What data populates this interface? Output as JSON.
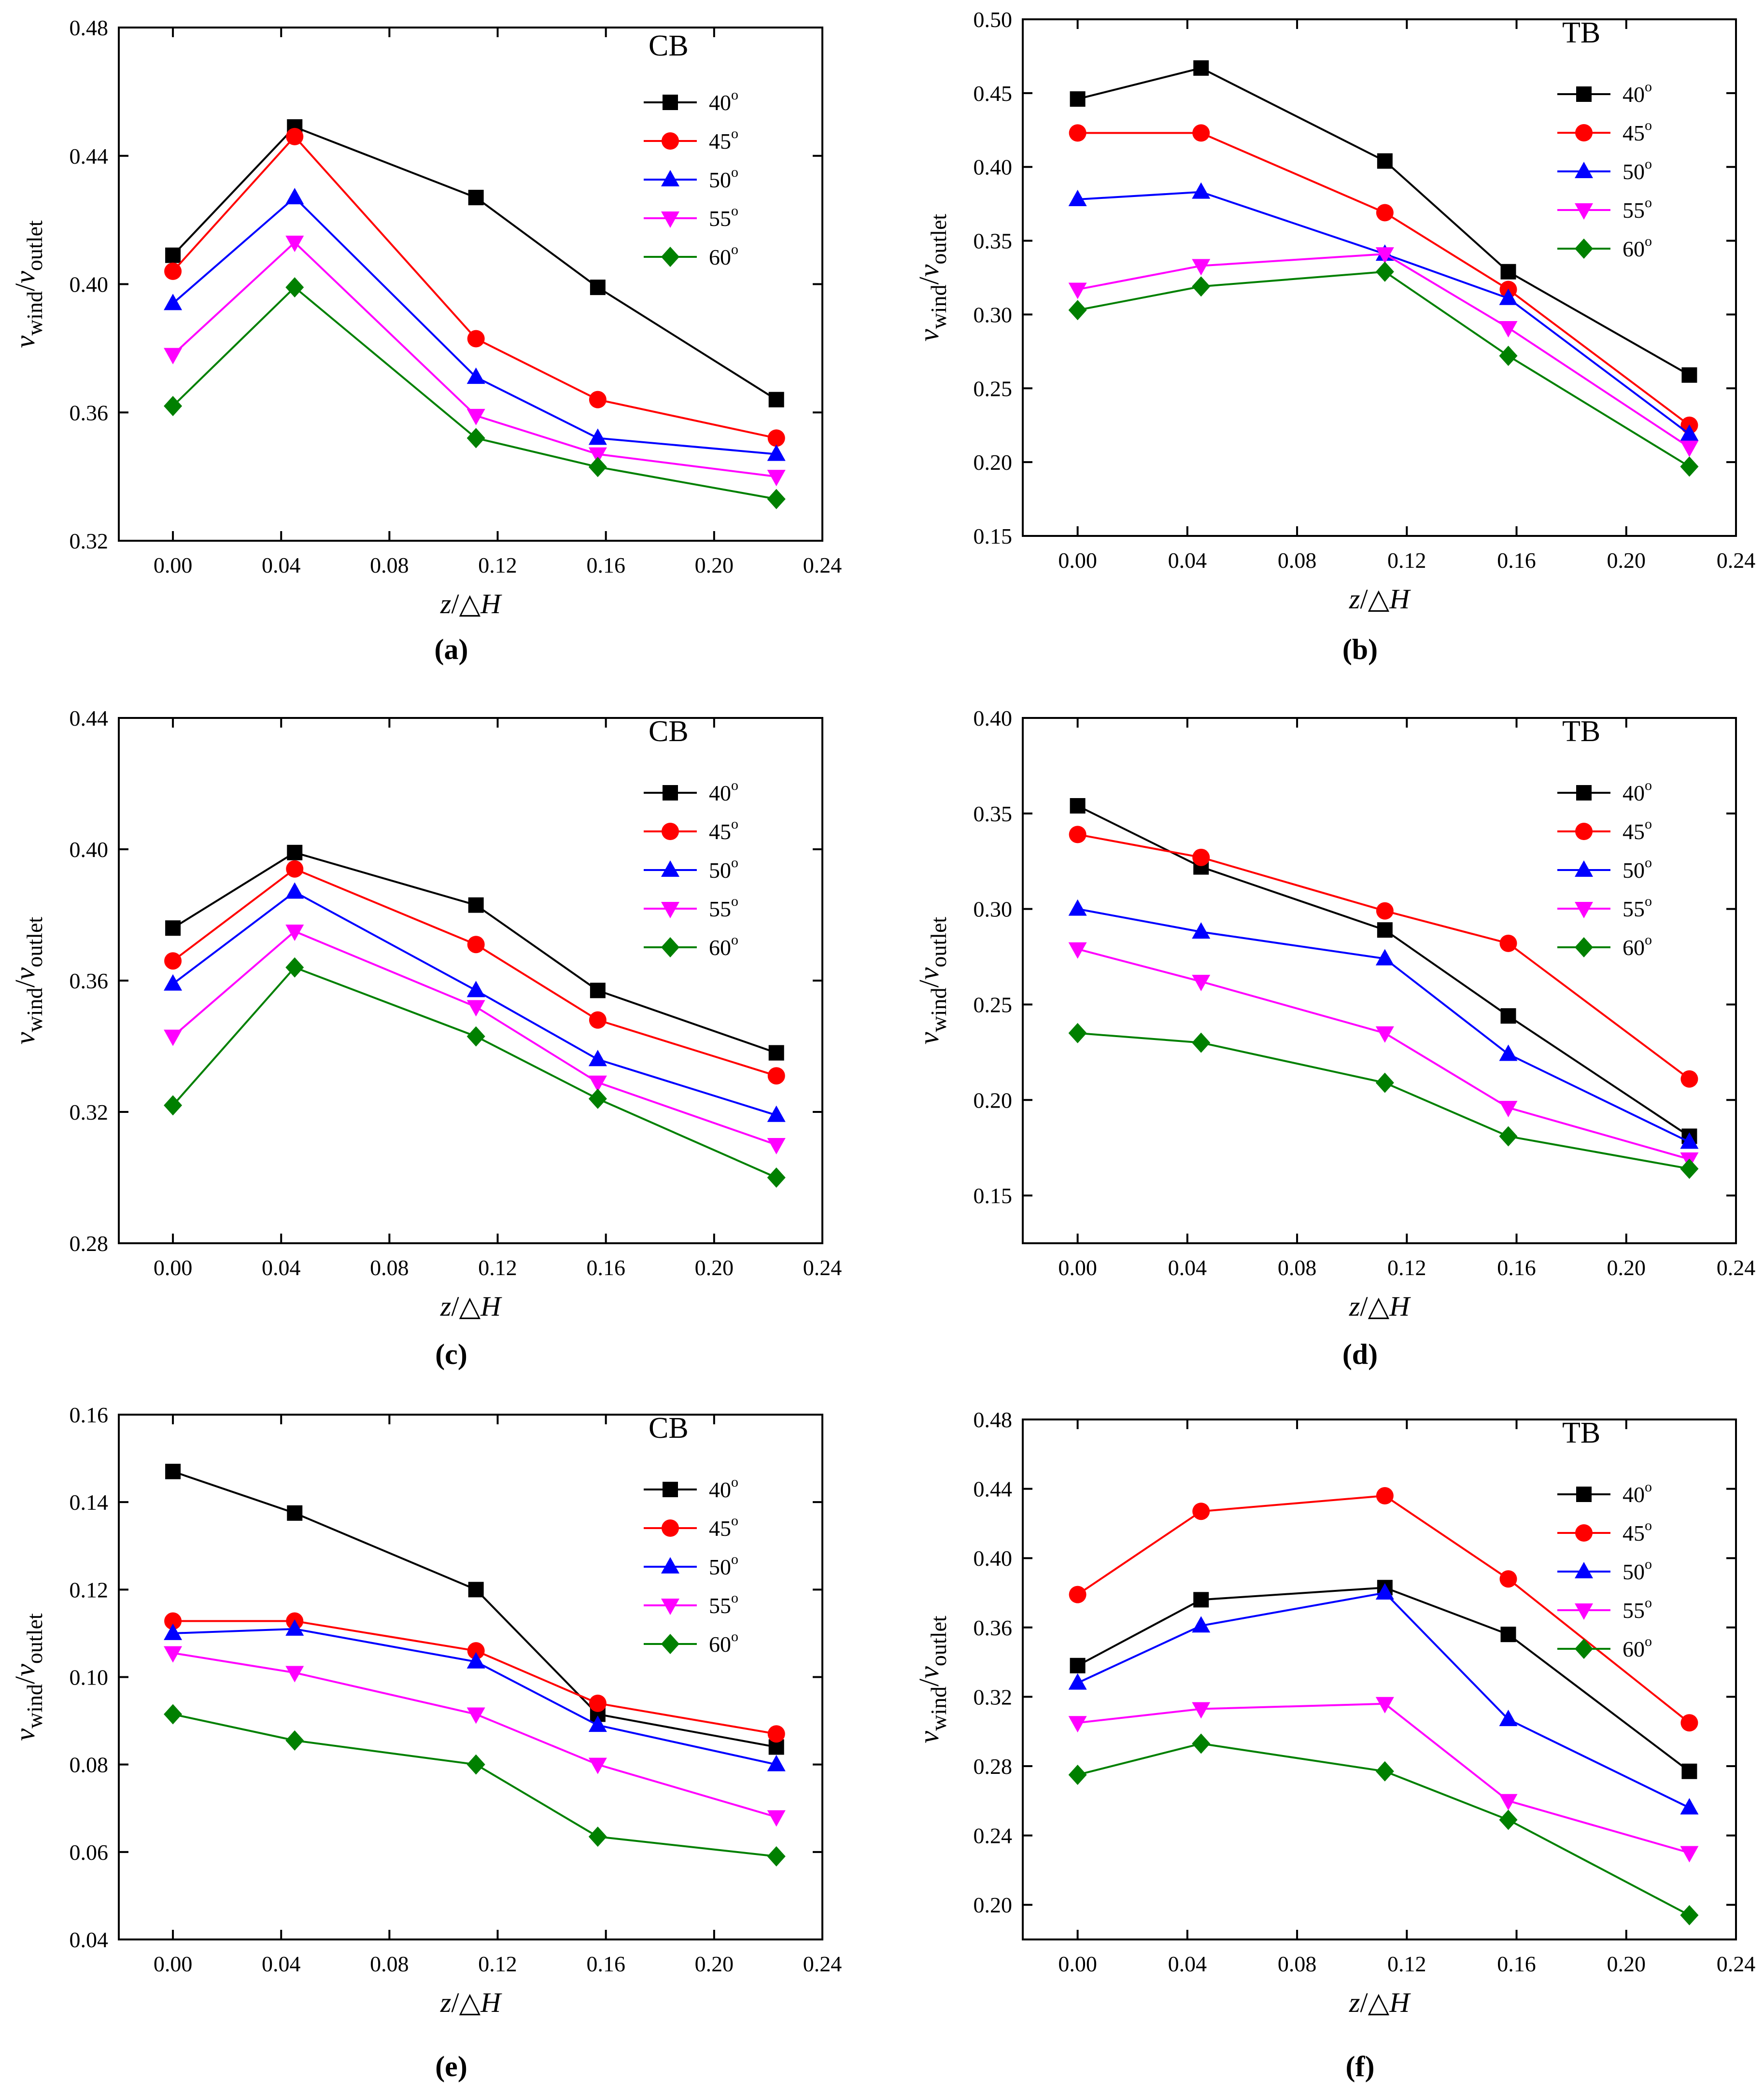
{
  "chart_data": [
    {
      "type": "line",
      "panel_label": "(a)",
      "title": "CB",
      "xlabel": {
        "var": "z",
        "sep": "/",
        "sym": "△",
        "h": "H"
      },
      "ylabel": {
        "v1": "v",
        "sub1": "wind",
        "sep": "/",
        "v2": "v",
        "sub2": "outlet"
      },
      "xlim": [
        -0.02,
        0.24
      ],
      "ylim": [
        0.32,
        0.48
      ],
      "xticks": [
        "0.00",
        "0.04",
        "0.08",
        "0.12",
        "0.16",
        "0.20",
        "0.24"
      ],
      "yticks": [
        "0.32",
        "0.36",
        "0.40",
        "0.44",
        "0.48"
      ],
      "x": [
        0.0,
        0.045,
        0.112,
        0.157,
        0.223
      ],
      "series": [
        {
          "name": "40",
          "sup": "o",
          "color": "#000000",
          "marker": "square",
          "values": [
            0.409,
            0.449,
            0.427,
            0.399,
            0.364
          ]
        },
        {
          "name": "45",
          "sup": "o",
          "color": "#ff0000",
          "marker": "circle",
          "values": [
            0.404,
            0.446,
            0.383,
            0.364,
            0.352
          ]
        },
        {
          "name": "50",
          "sup": "o",
          "color": "#0000ff",
          "marker": "triangle-up",
          "values": [
            0.394,
            0.427,
            0.371,
            0.352,
            0.347
          ]
        },
        {
          "name": "55",
          "sup": "o",
          "color": "#ff00ff",
          "marker": "triangle-down",
          "values": [
            0.378,
            0.413,
            0.359,
            0.347,
            0.34
          ]
        },
        {
          "name": "60",
          "sup": "o",
          "color": "#008000",
          "marker": "diamond",
          "values": [
            0.362,
            0.399,
            0.352,
            0.343,
            0.333
          ]
        }
      ]
    },
    {
      "type": "line",
      "panel_label": "(b)",
      "title": "TB",
      "xlabel": {
        "var": "z",
        "sep": "/",
        "sym": "△",
        "h": "H"
      },
      "ylabel": {
        "v1": "v",
        "sub1": "wind",
        "sep": "/",
        "v2": "v",
        "sub2": "outlet"
      },
      "xlim": [
        -0.02,
        0.24
      ],
      "ylim": [
        0.15,
        0.5
      ],
      "xticks": [
        "0.00",
        "0.04",
        "0.08",
        "0.12",
        "0.16",
        "0.20",
        "0.24"
      ],
      "yticks": [
        "0.15",
        "0.20",
        "0.25",
        "0.30",
        "0.35",
        "0.40",
        "0.45",
        "0.50"
      ],
      "x": [
        0.0,
        0.045,
        0.112,
        0.157,
        0.223
      ],
      "series": [
        {
          "name": "40",
          "sup": "o",
          "color": "#000000",
          "marker": "square",
          "values": [
            0.446,
            0.467,
            0.404,
            0.329,
            0.259
          ]
        },
        {
          "name": "45",
          "sup": "o",
          "color": "#ff0000",
          "marker": "circle",
          "values": [
            0.423,
            0.423,
            0.369,
            0.317,
            0.225
          ]
        },
        {
          "name": "50",
          "sup": "o",
          "color": "#0000ff",
          "marker": "triangle-up",
          "values": [
            0.378,
            0.383,
            0.341,
            0.311,
            0.219
          ]
        },
        {
          "name": "55",
          "sup": "o",
          "color": "#ff00ff",
          "marker": "triangle-down",
          "values": [
            0.317,
            0.333,
            0.341,
            0.291,
            0.21
          ]
        },
        {
          "name": "60",
          "sup": "o",
          "color": "#008000",
          "marker": "diamond",
          "values": [
            0.303,
            0.319,
            0.329,
            0.272,
            0.197
          ]
        }
      ]
    },
    {
      "type": "line",
      "panel_label": "(c)",
      "title": "CB",
      "xlabel": {
        "var": "z",
        "sep": "/",
        "sym": "△",
        "h": "H"
      },
      "ylabel": {
        "v1": "v",
        "sub1": "wind",
        "sep": "/",
        "v2": "v",
        "sub2": "outlet"
      },
      "xlim": [
        -0.02,
        0.24
      ],
      "ylim": [
        0.28,
        0.44
      ],
      "xticks": [
        "0.00",
        "0.04",
        "0.08",
        "0.12",
        "0.16",
        "0.20",
        "0.24"
      ],
      "yticks": [
        "0.28",
        "0.32",
        "0.36",
        "0.40",
        "0.44"
      ],
      "x": [
        0.0,
        0.045,
        0.112,
        0.157,
        0.223
      ],
      "series": [
        {
          "name": "40",
          "sup": "o",
          "color": "#000000",
          "marker": "square",
          "values": [
            0.376,
            0.399,
            0.383,
            0.357,
            0.338
          ]
        },
        {
          "name": "45",
          "sup": "o",
          "color": "#ff0000",
          "marker": "circle",
          "values": [
            0.366,
            0.394,
            0.371,
            0.348,
            0.331
          ]
        },
        {
          "name": "50",
          "sup": "o",
          "color": "#0000ff",
          "marker": "triangle-up",
          "values": [
            0.359,
            0.387,
            0.357,
            0.336,
            0.319
          ]
        },
        {
          "name": "55",
          "sup": "o",
          "color": "#ff00ff",
          "marker": "triangle-down",
          "values": [
            0.343,
            0.375,
            0.352,
            0.329,
            0.31
          ]
        },
        {
          "name": "60",
          "sup": "o",
          "color": "#008000",
          "marker": "diamond",
          "values": [
            0.322,
            0.364,
            0.343,
            0.324,
            0.3
          ]
        }
      ]
    },
    {
      "type": "line",
      "panel_label": "(d)",
      "title": "TB",
      "xlabel": {
        "var": "z",
        "sep": "/",
        "sym": "△",
        "h": "H"
      },
      "ylabel": {
        "v1": "v",
        "sub1": "wind",
        "sep": "/",
        "v2": "v",
        "sub2": "outlet"
      },
      "xlim": [
        -0.02,
        0.24
      ],
      "ylim": [
        0.125,
        0.4
      ],
      "xticks": [
        "0.00",
        "0.04",
        "0.08",
        "0.12",
        "0.16",
        "0.20",
        "0.24"
      ],
      "yticks": [
        "0.15",
        "0.20",
        "0.25",
        "0.30",
        "0.35",
        "0.40"
      ],
      "x": [
        0.0,
        0.045,
        0.112,
        0.157,
        0.223
      ],
      "series": [
        {
          "name": "40",
          "sup": "o",
          "color": "#000000",
          "marker": "square",
          "values": [
            0.354,
            0.322,
            0.289,
            0.244,
            0.181
          ]
        },
        {
          "name": "45",
          "sup": "o",
          "color": "#ff0000",
          "marker": "circle",
          "values": [
            0.339,
            0.327,
            0.299,
            0.282,
            0.211
          ]
        },
        {
          "name": "50",
          "sup": "o",
          "color": "#0000ff",
          "marker": "triangle-up",
          "values": [
            0.3,
            0.288,
            0.274,
            0.224,
            0.178
          ]
        },
        {
          "name": "55",
          "sup": "o",
          "color": "#ff00ff",
          "marker": "triangle-down",
          "values": [
            0.279,
            0.262,
            0.235,
            0.196,
            0.169
          ]
        },
        {
          "name": "60",
          "sup": "o",
          "color": "#008000",
          "marker": "diamond",
          "values": [
            0.235,
            0.23,
            0.209,
            0.181,
            0.164
          ]
        }
      ]
    },
    {
      "type": "line",
      "panel_label": "(e)",
      "title": "CB",
      "xlabel": {
        "var": "z",
        "sep": "/",
        "sym": "△",
        "h": "H"
      },
      "ylabel": {
        "v1": "v",
        "sub1": "wind",
        "sep": "/",
        "v2": "v",
        "sub2": "outlet"
      },
      "xlim": [
        -0.02,
        0.24
      ],
      "ylim": [
        0.04,
        0.16
      ],
      "xticks": [
        "0.00",
        "0.04",
        "0.08",
        "0.12",
        "0.16",
        "0.20",
        "0.24"
      ],
      "yticks": [
        "0.04",
        "0.06",
        "0.08",
        "0.10",
        "0.12",
        "0.14",
        "0.16"
      ],
      "x": [
        0.0,
        0.045,
        0.112,
        0.157,
        0.223
      ],
      "series": [
        {
          "name": "40",
          "sup": "o",
          "color": "#000000",
          "marker": "square",
          "values": [
            0.147,
            0.1375,
            0.12,
            0.0915,
            0.084
          ]
        },
        {
          "name": "45",
          "sup": "o",
          "color": "#ff0000",
          "marker": "circle",
          "values": [
            0.1128,
            0.1128,
            0.106,
            0.094,
            0.087
          ]
        },
        {
          "name": "50",
          "sup": "o",
          "color": "#0000ff",
          "marker": "triangle-up",
          "values": [
            0.11,
            0.111,
            0.1035,
            0.089,
            0.08
          ]
        },
        {
          "name": "55",
          "sup": "o",
          "color": "#ff00ff",
          "marker": "triangle-down",
          "values": [
            0.1055,
            0.101,
            0.0915,
            0.08,
            0.068
          ]
        },
        {
          "name": "60",
          "sup": "o",
          "color": "#008000",
          "marker": "diamond",
          "values": [
            0.0915,
            0.0855,
            0.08,
            0.0635,
            0.059
          ]
        }
      ]
    },
    {
      "type": "line",
      "panel_label": "(f)",
      "title": "TB",
      "xlabel": {
        "var": "z",
        "sep": "/",
        "sym": "△",
        "h": "H"
      },
      "ylabel": {
        "v1": "v",
        "sub1": "wind",
        "sep": "/",
        "v2": "v",
        "sub2": "outlet"
      },
      "xlim": [
        -0.02,
        0.24
      ],
      "ylim": [
        0.18,
        0.48
      ],
      "xticks": [
        "0.00",
        "0.04",
        "0.08",
        "0.12",
        "0.16",
        "0.20",
        "0.24"
      ],
      "yticks": [
        "0.20",
        "0.24",
        "0.28",
        "0.32",
        "0.36",
        "0.40",
        "0.44",
        "0.48"
      ],
      "x": [
        0.0,
        0.045,
        0.112,
        0.157,
        0.223
      ],
      "series": [
        {
          "name": "40",
          "sup": "o",
          "color": "#000000",
          "marker": "square",
          "values": [
            0.338,
            0.376,
            0.383,
            0.356,
            0.277
          ]
        },
        {
          "name": "45",
          "sup": "o",
          "color": "#ff0000",
          "marker": "circle",
          "values": [
            0.379,
            0.427,
            0.436,
            0.388,
            0.305
          ]
        },
        {
          "name": "50",
          "sup": "o",
          "color": "#0000ff",
          "marker": "triangle-up",
          "values": [
            0.328,
            0.361,
            0.38,
            0.307,
            0.256
          ]
        },
        {
          "name": "55",
          "sup": "o",
          "color": "#ff00ff",
          "marker": "triangle-down",
          "values": [
            0.305,
            0.313,
            0.316,
            0.26,
            0.23
          ]
        },
        {
          "name": "60",
          "sup": "o",
          "color": "#008000",
          "marker": "diamond",
          "values": [
            0.275,
            0.293,
            0.277,
            0.249,
            0.194
          ]
        }
      ]
    }
  ]
}
